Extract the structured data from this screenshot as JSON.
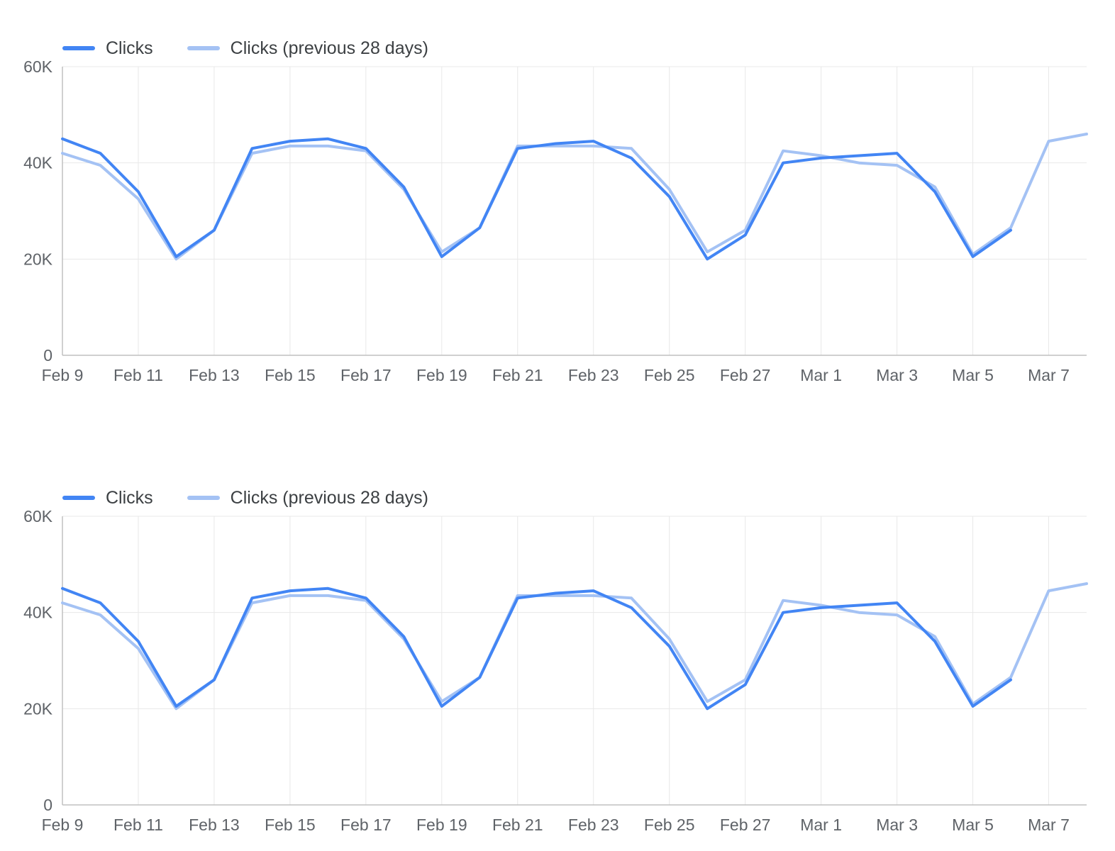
{
  "page": {
    "background": "#ffffff"
  },
  "colors": {
    "clicks_line": "#4285f4",
    "clicks_previous_line": "#a4c2f4",
    "grid": "#e8e8e8",
    "axis": "#c0c0c0",
    "tick_text": "#5f6368",
    "legend_text": "#3c4043"
  },
  "chart_data": [
    {
      "type": "line",
      "title": "",
      "grid": true,
      "legend_position": "top-left",
      "x": [
        "Feb 9",
        "Feb 10",
        "Feb 11",
        "Feb 12",
        "Feb 13",
        "Feb 14",
        "Feb 15",
        "Feb 16",
        "Feb 17",
        "Feb 18",
        "Feb 19",
        "Feb 20",
        "Feb 21",
        "Feb 22",
        "Feb 23",
        "Feb 24",
        "Feb 25",
        "Feb 26",
        "Feb 27",
        "Feb 28",
        "Mar 1",
        "Mar 2",
        "Mar 3",
        "Mar 4",
        "Mar 5",
        "Mar 6",
        "Mar 7",
        "Mar 8"
      ],
      "x_tick_labels": [
        "Feb 9",
        "Feb 11",
        "Feb 13",
        "Feb 15",
        "Feb 17",
        "Feb 19",
        "Feb 21",
        "Feb 23",
        "Feb 25",
        "Feb 27",
        "Mar 1",
        "Mar 3",
        "Mar 5",
        "Mar 7"
      ],
      "ylim": [
        0,
        60000
      ],
      "y_ticks": [
        0,
        20000,
        40000,
        60000
      ],
      "y_tick_labels": [
        "0",
        "20K",
        "40K",
        "60K"
      ],
      "series": [
        {
          "name": "Clicks",
          "color": "#4285f4",
          "values": [
            45000,
            42000,
            34000,
            20500,
            26000,
            43000,
            44500,
            45000,
            43000,
            35000,
            20500,
            26500,
            43000,
            44000,
            44500,
            41000,
            33000,
            20000,
            25000,
            40000,
            41000,
            41500,
            42000,
            34000,
            20500,
            26000,
            null,
            null
          ]
        },
        {
          "name": "Clicks (previous 28 days)",
          "color": "#a4c2f4",
          "values": [
            42000,
            39500,
            32500,
            20000,
            26000,
            42000,
            43500,
            43500,
            42500,
            34500,
            21500,
            26500,
            43500,
            43500,
            43500,
            43000,
            34500,
            21500,
            26000,
            42500,
            41500,
            40000,
            39500,
            35000,
            21000,
            26500,
            44500,
            46000
          ]
        }
      ]
    },
    {
      "type": "line",
      "title": "",
      "grid": true,
      "legend_position": "top-left",
      "x": [
        "Feb 9",
        "Feb 10",
        "Feb 11",
        "Feb 12",
        "Feb 13",
        "Feb 14",
        "Feb 15",
        "Feb 16",
        "Feb 17",
        "Feb 18",
        "Feb 19",
        "Feb 20",
        "Feb 21",
        "Feb 22",
        "Feb 23",
        "Feb 24",
        "Feb 25",
        "Feb 26",
        "Feb 27",
        "Feb 28",
        "Mar 1",
        "Mar 2",
        "Mar 3",
        "Mar 4",
        "Mar 5",
        "Mar 6",
        "Mar 7",
        "Mar 8"
      ],
      "x_tick_labels": [
        "Feb 9",
        "Feb 11",
        "Feb 13",
        "Feb 15",
        "Feb 17",
        "Feb 19",
        "Feb 21",
        "Feb 23",
        "Feb 25",
        "Feb 27",
        "Mar 1",
        "Mar 3",
        "Mar 5",
        "Mar 7"
      ],
      "ylim": [
        0,
        60000
      ],
      "y_ticks": [
        0,
        20000,
        40000,
        60000
      ],
      "y_tick_labels": [
        "0",
        "20K",
        "40K",
        "60K"
      ],
      "series": [
        {
          "name": "Clicks",
          "color": "#4285f4",
          "values": [
            45000,
            42000,
            34000,
            20500,
            26000,
            43000,
            44500,
            45000,
            43000,
            35000,
            20500,
            26500,
            43000,
            44000,
            44500,
            41000,
            33000,
            20000,
            25000,
            40000,
            41000,
            41500,
            42000,
            34000,
            20500,
            26000,
            null,
            null
          ]
        },
        {
          "name": "Clicks (previous 28 days)",
          "color": "#a4c2f4",
          "values": [
            42000,
            39500,
            32500,
            20000,
            26000,
            42000,
            43500,
            43500,
            42500,
            34500,
            21500,
            26500,
            43500,
            43500,
            43500,
            43000,
            34500,
            21500,
            26000,
            42500,
            41500,
            40000,
            39500,
            35000,
            21000,
            26500,
            44500,
            46000
          ]
        }
      ]
    }
  ]
}
